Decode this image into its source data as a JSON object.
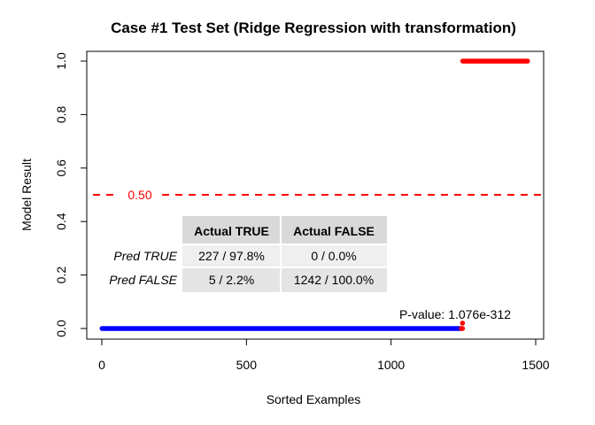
{
  "chart_data": {
    "type": "scatter",
    "title": "Case #1 Test Set (Ridge Regression with transformation)",
    "xlabel": "Sorted Examples",
    "ylabel": "Model Result",
    "xlim": [
      0,
      1500
    ],
    "ylim": [
      0,
      1
    ],
    "x_ticks": [
      0,
      500,
      1000,
      1500
    ],
    "y_ticks": [
      "0.0",
      "0.2",
      "0.4",
      "0.6",
      "0.8",
      "1.0"
    ],
    "grid": false,
    "series": [
      {
        "color": "#0000ff",
        "x_range": [
          1,
          1242
        ],
        "y": 0.0
      },
      {
        "color": "#ff0000",
        "x_range": [
          1243,
          1247
        ],
        "y": 0.0
      },
      {
        "color": "#ff0000",
        "x_range": [
          1248,
          1474
        ],
        "y": 1.0
      }
    ],
    "threshold": {
      "value": 0.5,
      "label": "0.50",
      "color": "#ff0000",
      "style": "dashed"
    },
    "annotation": {
      "text": "P-value: 1.076e-312"
    },
    "confusion_table": {
      "col_headers": [
        "Actual TRUE",
        "Actual FALSE"
      ],
      "rows": [
        {
          "label": "Pred TRUE",
          "values": [
            "227 / 97.8%",
            "0 / 0.0%"
          ]
        },
        {
          "label": "Pred FALSE",
          "values": [
            "5 / 2.2%",
            "1242 / 100.0%"
          ]
        }
      ]
    }
  }
}
